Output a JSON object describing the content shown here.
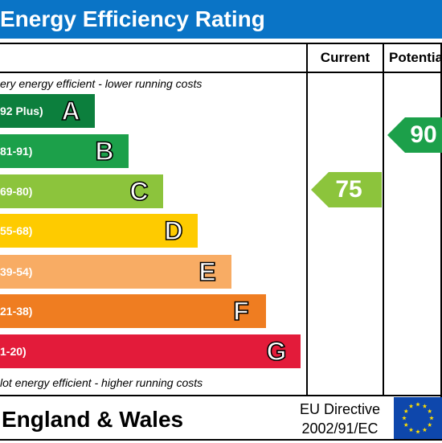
{
  "title": "Energy Efficiency Rating",
  "columns": {
    "current": "Current",
    "potential": "Potentia"
  },
  "notes": {
    "top": "ery energy efficient - lower running costs",
    "bottom": "lot energy efficient - higher running costs"
  },
  "bands": [
    {
      "range": "92 Plus)",
      "letter": "A",
      "color": "#0c7f3d"
    },
    {
      "range": "81-91)",
      "letter": "B",
      "color": "#1ca04a"
    },
    {
      "range": "69-80)",
      "letter": "C",
      "color": "#8cc43c"
    },
    {
      "range": "55-68)",
      "letter": "D",
      "color": "#fecb00"
    },
    {
      "range": "39-54)",
      "letter": "E",
      "color": "#f8ac64"
    },
    {
      "range": "21-38)",
      "letter": "F",
      "color": "#ef7d21"
    },
    {
      "range": "1-20)",
      "letter": "G",
      "color": "#e31b3a"
    }
  ],
  "ratings": {
    "current": {
      "value": "75",
      "band": "C",
      "color": "#8cc43c"
    },
    "potential": {
      "value": "90",
      "band": "B",
      "color": "#1ca04a"
    }
  },
  "footer": {
    "region": "England & Wales",
    "directive_line1": "EU Directive",
    "directive_line2": "2002/91/EC"
  },
  "eu_flag": {
    "icon": "eu-flag-icon",
    "background": "#0e47ac",
    "stars": "#ffdd00"
  }
}
